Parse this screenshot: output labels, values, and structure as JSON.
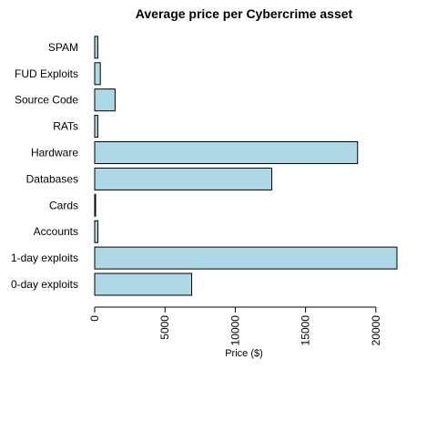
{
  "chart_data": {
    "type": "bar",
    "orientation": "horizontal",
    "title": "Average price per Cybercrime asset",
    "xlabel": "Price ($)",
    "ylabel": "",
    "categories": [
      "0-day exploits",
      "1-day exploits",
      "Accounts",
      "Cards",
      "Databases",
      "Hardware",
      "RATs",
      "Source Code",
      "FUD Exploits",
      "SPAM"
    ],
    "values": [
      6900,
      21500,
      230,
      60,
      12600,
      18700,
      220,
      1450,
      400,
      220
    ],
    "xlim": [
      0,
      21500
    ],
    "xticks": [
      0,
      5000,
      10000,
      15000,
      20000
    ],
    "xtick_labels": [
      "0",
      "5000",
      "10000",
      "15000",
      "20000"
    ],
    "grid": false,
    "legend": "none",
    "bar_fill": "#add8e6",
    "bar_stroke": "#000000"
  }
}
